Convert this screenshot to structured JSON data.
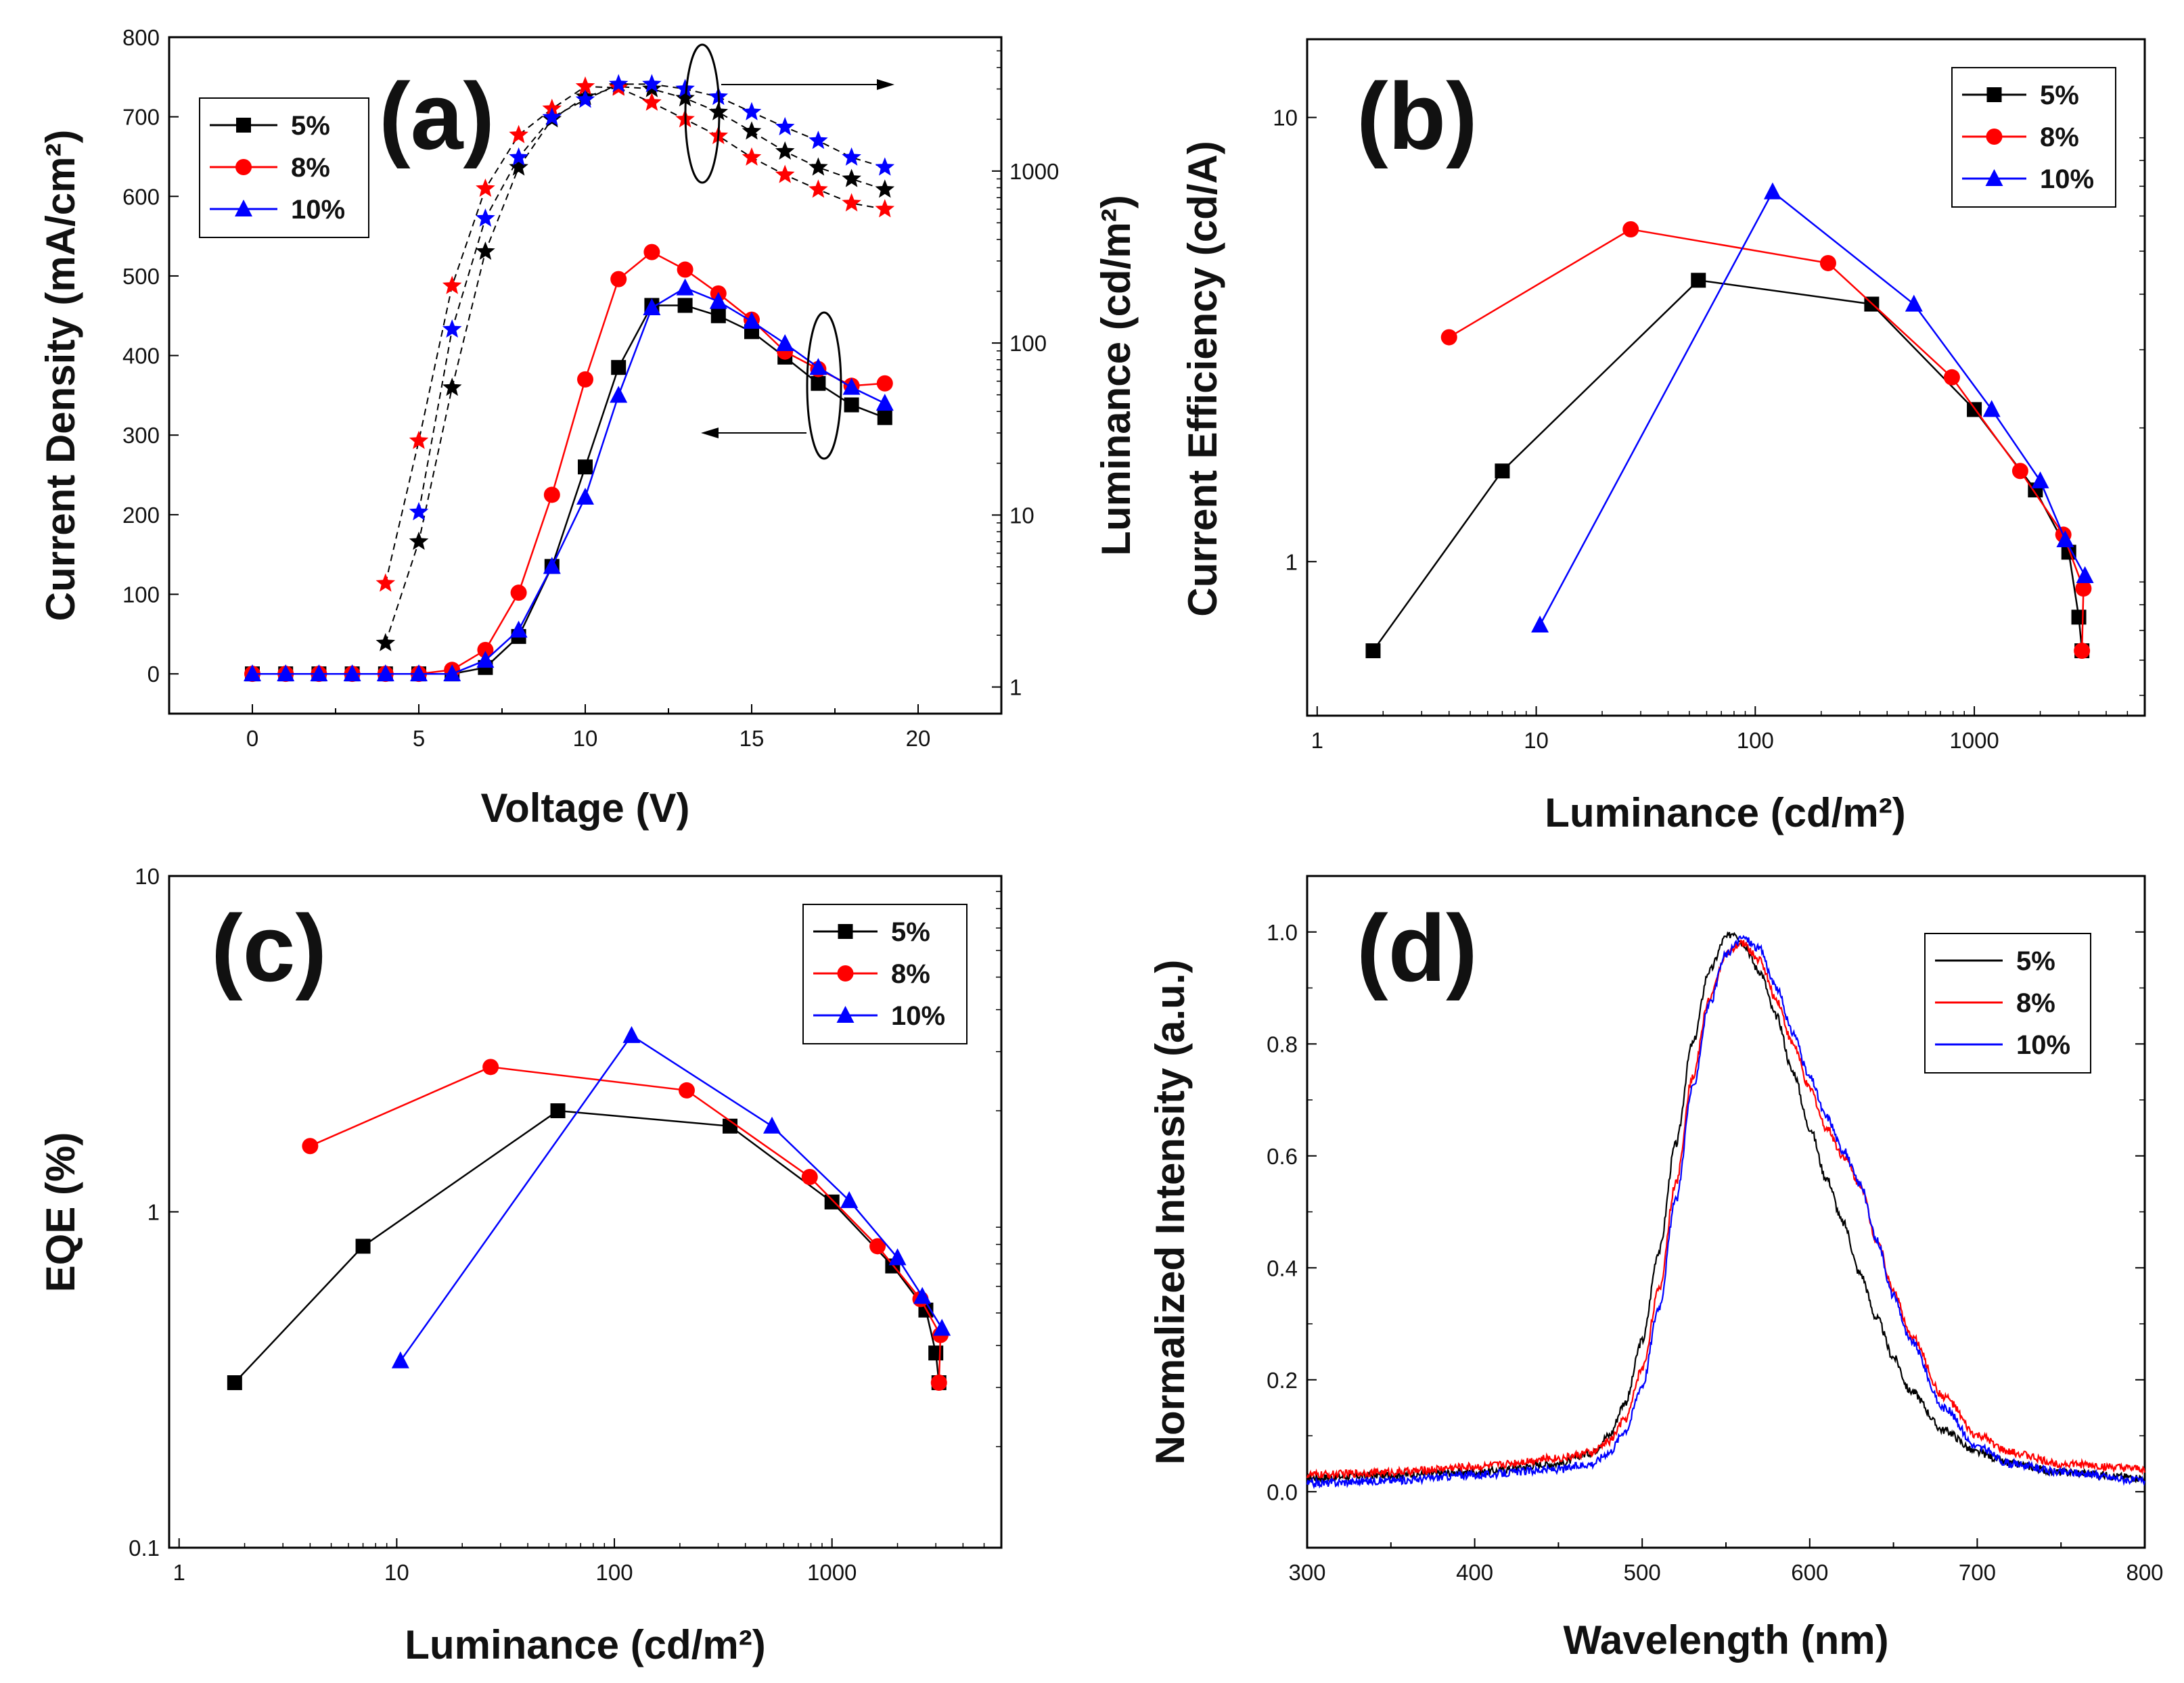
{
  "colors": {
    "s5": "#000000",
    "s8": "#ff0000",
    "s10": "#0000ff"
  },
  "chart_data": [
    {
      "id": "a",
      "type": "line",
      "panel_label": "(a)",
      "xlabel": "Voltage (V)",
      "ylabel": "Current Density (mA/cm²)",
      "y2label": "Luminance (cd/m²)",
      "xlim": [
        -2.5,
        22.5
      ],
      "ylim": [
        -50,
        800
      ],
      "y2lim": [
        0.7,
        6000
      ],
      "y2scale": "log",
      "xticks": [
        "0",
        "5",
        "10",
        "15",
        "20"
      ],
      "yticks": [
        "0",
        "100",
        "200",
        "300",
        "400",
        "500",
        "600",
        "700",
        "800"
      ],
      "y2ticks": [
        "1",
        "10",
        "100",
        "1000"
      ],
      "legend": [
        "5%",
        "8%",
        "10%"
      ],
      "legend_position": "top-left",
      "x": [
        0,
        1,
        2,
        3,
        4,
        5,
        6,
        7,
        8,
        9,
        10,
        11,
        12,
        13,
        14,
        15,
        16,
        17,
        18,
        19
      ],
      "current_density": [
        {
          "name": "5%",
          "values": [
            0,
            0,
            0,
            0,
            0,
            0,
            0,
            8,
            47,
            135,
            260,
            385,
            463,
            463,
            450,
            430,
            398,
            365,
            338,
            322
          ]
        },
        {
          "name": "8%",
          "values": [
            0,
            0,
            0,
            0,
            0,
            0,
            5,
            30,
            102,
            225,
            370,
            496,
            530,
            508,
            478,
            445,
            405,
            383,
            362,
            365
          ]
        },
        {
          "name": "10%",
          "values": [
            0,
            0,
            0,
            0,
            0,
            0,
            0,
            17,
            55,
            135,
            222,
            350,
            460,
            485,
            468,
            443,
            415,
            385,
            360,
            340
          ]
        }
      ],
      "luminance_x": [
        4,
        5,
        6,
        7,
        8,
        9,
        10,
        11,
        12,
        13,
        14,
        15,
        16,
        17,
        18,
        19
      ],
      "luminance": [
        {
          "name": "5%",
          "values": [
            1.8,
            7,
            55,
            340,
            1050,
            2000,
            2700,
            3100,
            3000,
            2650,
            2200,
            1700,
            1300,
            1050,
            900,
            780
          ]
        },
        {
          "name": "8%",
          "values": [
            4,
            27,
            215,
            790,
            1620,
            2300,
            3100,
            3050,
            2500,
            2000,
            1600,
            1200,
            950,
            780,
            650,
            600
          ]
        },
        {
          "name": "10%",
          "values": [
            null,
            10.4,
            120,
            530,
            1200,
            2050,
            2600,
            3200,
            3200,
            3000,
            2700,
            2200,
            1800,
            1500,
            1200,
            1050
          ]
        }
      ]
    },
    {
      "id": "b",
      "type": "line",
      "panel_label": "(b)",
      "xlabel": "Luminance (cd/m²)",
      "ylabel": "Current Efficiency (cd/A)",
      "xscale": "log",
      "yscale": "log",
      "xlim": [
        0.9,
        6000
      ],
      "ylim": [
        0.45,
        15
      ],
      "xticks": [
        "1",
        "10",
        "100",
        "1000"
      ],
      "yticks": [
        "1",
        "10"
      ],
      "legend": [
        "5%",
        "8%",
        "10%"
      ],
      "legend_position": "top-right",
      "series": [
        {
          "name": "5%",
          "x": [
            1.8,
            7,
            55,
            340,
            1000,
            1900,
            2700,
            3000,
            3100
          ],
          "y": [
            0.63,
            1.6,
            4.3,
            3.8,
            2.2,
            1.45,
            1.05,
            0.75,
            0.63
          ]
        },
        {
          "name": "8%",
          "x": [
            4,
            27,
            215,
            790,
            1620,
            2550,
            3150,
            3100
          ],
          "y": [
            3.2,
            5.6,
            4.7,
            2.6,
            1.6,
            1.15,
            0.87,
            0.63
          ]
        },
        {
          "name": "10%",
          "x": [
            10.4,
            120,
            530,
            1200,
            2000,
            2600,
            3200
          ],
          "y": [
            0.72,
            6.8,
            3.8,
            2.2,
            1.52,
            1.12,
            0.93
          ]
        }
      ]
    },
    {
      "id": "c",
      "type": "line",
      "panel_label": "(c)",
      "xlabel": "Luminance (cd/m²)",
      "ylabel": "EQE (%)",
      "xscale": "log",
      "yscale": "log",
      "xlim": [
        0.9,
        6000
      ],
      "ylim": [
        0.1,
        10
      ],
      "xticks": [
        "1",
        "10",
        "100",
        "1000"
      ],
      "yticks": [
        "0.1",
        "1",
        "10"
      ],
      "legend": [
        "5%",
        "8%",
        "10%"
      ],
      "legend_position": "top-right",
      "series": [
        {
          "name": "5%",
          "x": [
            1.8,
            7,
            55,
            340,
            1000,
            1900,
            2700,
            3000,
            3100
          ],
          "y": [
            0.31,
            0.79,
            2.0,
            1.8,
            1.07,
            0.69,
            0.51,
            0.38,
            0.31
          ]
        },
        {
          "name": "8%",
          "x": [
            4,
            27,
            215,
            790,
            1620,
            2550,
            3150,
            3100
          ],
          "y": [
            1.57,
            2.7,
            2.3,
            1.27,
            0.79,
            0.55,
            0.43,
            0.31
          ]
        },
        {
          "name": "10%",
          "x": [
            10.4,
            120,
            530,
            1200,
            2000,
            2600,
            3200
          ],
          "y": [
            0.36,
            3.35,
            1.8,
            1.08,
            0.73,
            0.56,
            0.45
          ]
        }
      ]
    },
    {
      "id": "d",
      "type": "line",
      "panel_label": "(d)",
      "xlabel": "Wavelength (nm)",
      "ylabel": "Normalized Intensity (a.u.)",
      "xlim": [
        300,
        800
      ],
      "ylim": [
        -0.1,
        1.1
      ],
      "xticks": [
        "300",
        "400",
        "500",
        "600",
        "700",
        "800"
      ],
      "yticks": [
        "0.0",
        "0.2",
        "0.4",
        "0.6",
        "0.8",
        "1.0"
      ],
      "legend": [
        "5%",
        "8%",
        "10%"
      ],
      "legend_position": "top-right",
      "series": [
        {
          "name": "5%",
          "x": [
            300,
            350,
            400,
            450,
            470,
            480,
            490,
            500,
            510,
            520,
            530,
            540,
            550,
            555,
            560,
            570,
            580,
            590,
            600,
            610,
            620,
            630,
            640,
            650,
            660,
            680,
            700,
            720,
            750,
            800
          ],
          "y": [
            0.025,
            0.03,
            0.035,
            0.05,
            0.07,
            0.1,
            0.16,
            0.27,
            0.43,
            0.62,
            0.8,
            0.93,
            0.99,
            1.0,
            0.98,
            0.93,
            0.85,
            0.75,
            0.65,
            0.56,
            0.48,
            0.39,
            0.31,
            0.24,
            0.18,
            0.11,
            0.07,
            0.05,
            0.035,
            0.025
          ]
        },
        {
          "name": "8%",
          "x": [
            300,
            350,
            400,
            450,
            470,
            480,
            490,
            500,
            510,
            520,
            530,
            540,
            550,
            560,
            570,
            580,
            590,
            600,
            610,
            620,
            630,
            640,
            650,
            660,
            680,
            700,
            720,
            750,
            800
          ],
          "y": [
            0.03,
            0.035,
            0.045,
            0.06,
            0.07,
            0.09,
            0.13,
            0.22,
            0.36,
            0.55,
            0.74,
            0.88,
            0.96,
            0.98,
            0.95,
            0.88,
            0.8,
            0.72,
            0.65,
            0.6,
            0.55,
            0.45,
            0.36,
            0.28,
            0.17,
            0.1,
            0.07,
            0.05,
            0.04
          ]
        },
        {
          "name": "10%",
          "x": [
            300,
            350,
            400,
            450,
            470,
            480,
            490,
            500,
            510,
            520,
            530,
            540,
            550,
            560,
            570,
            580,
            590,
            600,
            610,
            620,
            630,
            640,
            650,
            660,
            680,
            700,
            720,
            750,
            800
          ],
          "y": [
            0.015,
            0.02,
            0.03,
            0.04,
            0.05,
            0.07,
            0.11,
            0.19,
            0.33,
            0.52,
            0.72,
            0.87,
            0.96,
            0.99,
            0.97,
            0.9,
            0.82,
            0.74,
            0.67,
            0.61,
            0.55,
            0.45,
            0.35,
            0.27,
            0.15,
            0.08,
            0.05,
            0.035,
            0.02
          ]
        }
      ]
    }
  ]
}
